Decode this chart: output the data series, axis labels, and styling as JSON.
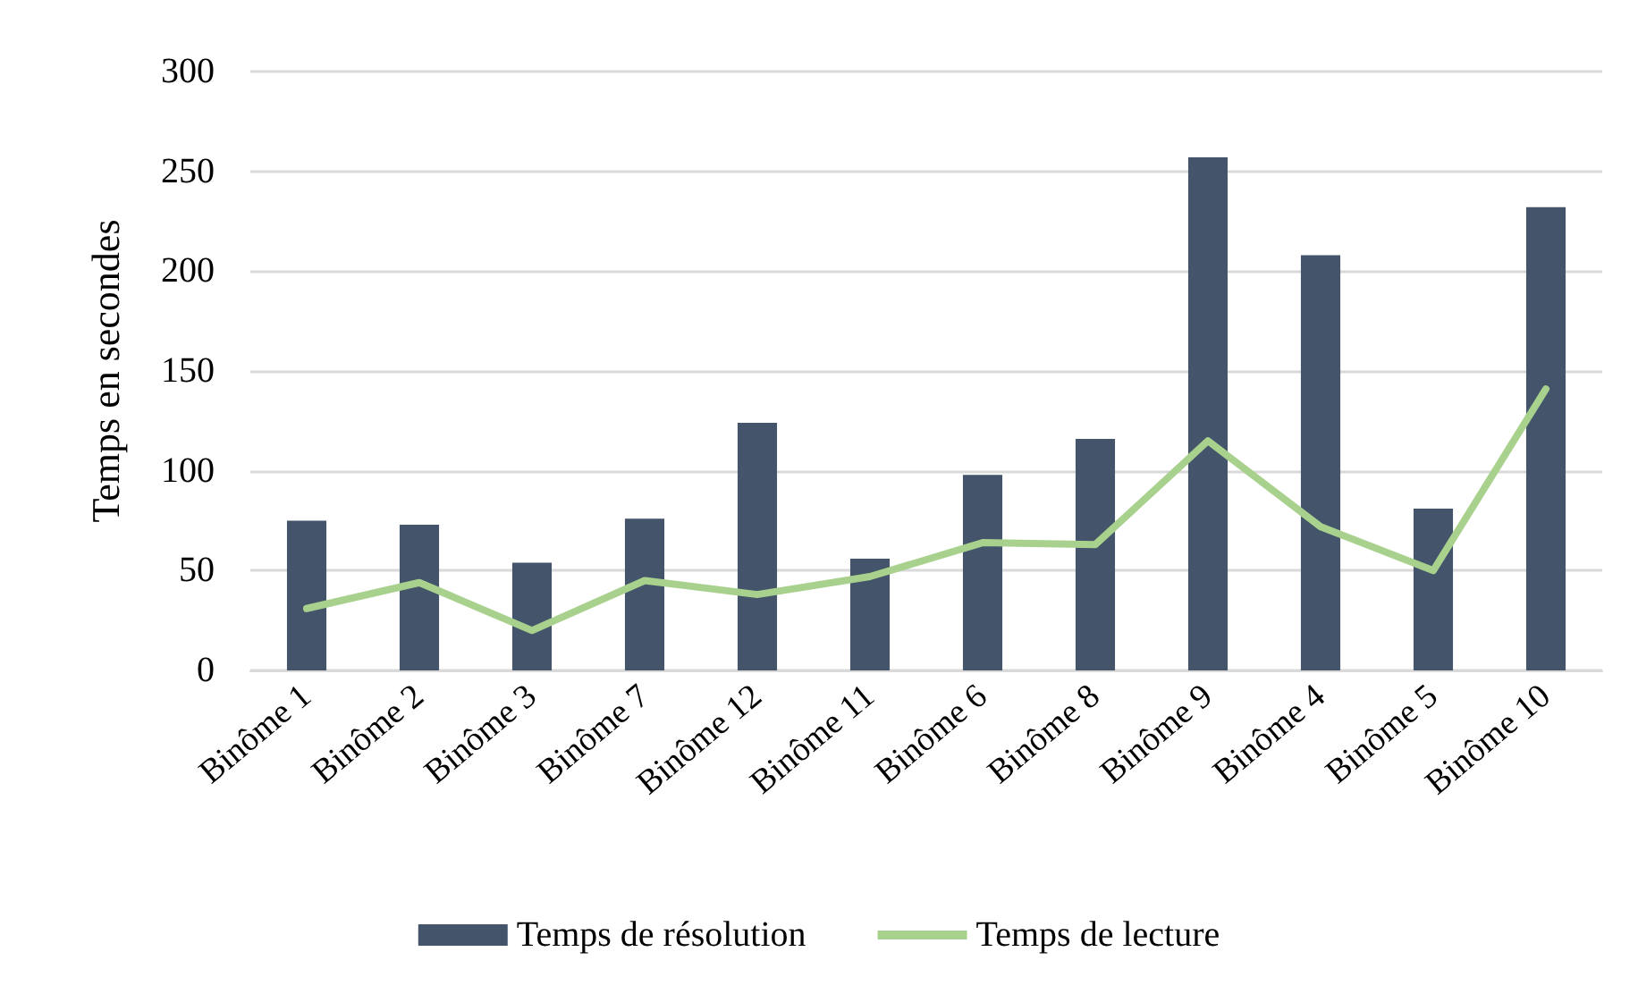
{
  "chart_data": {
    "type": "bar",
    "ylabel": "Temps en secondes",
    "categories": [
      "Binôme 1",
      "Binôme 2",
      "Binôme 3",
      "Binôme 7",
      "Binôme 12",
      "Binôme 11",
      "Binôme 6",
      "Binôme 8",
      "Binôme 9",
      "Binôme 4",
      "Binôme 5",
      "Binôme 10"
    ],
    "series": [
      {
        "name": "Temps de résolution",
        "color": "#44546a",
        "values": [
          75,
          73,
          54,
          76,
          124,
          56,
          98,
          116,
          257,
          208,
          81,
          232
        ]
      },
      {
        "name": "Temps de lecture",
        "type": "line",
        "color": "#a9d18e",
        "values": [
          31,
          44,
          20,
          45,
          38,
          47,
          64,
          63,
          115,
          72,
          50,
          141
        ]
      }
    ],
    "ylim": [
      0,
      300
    ],
    "yticks": [
      0,
      50,
      100,
      150,
      200,
      250,
      300
    ],
    "grid": "y",
    "legend": "bottom",
    "marker": "none",
    "line_style": "solid"
  }
}
